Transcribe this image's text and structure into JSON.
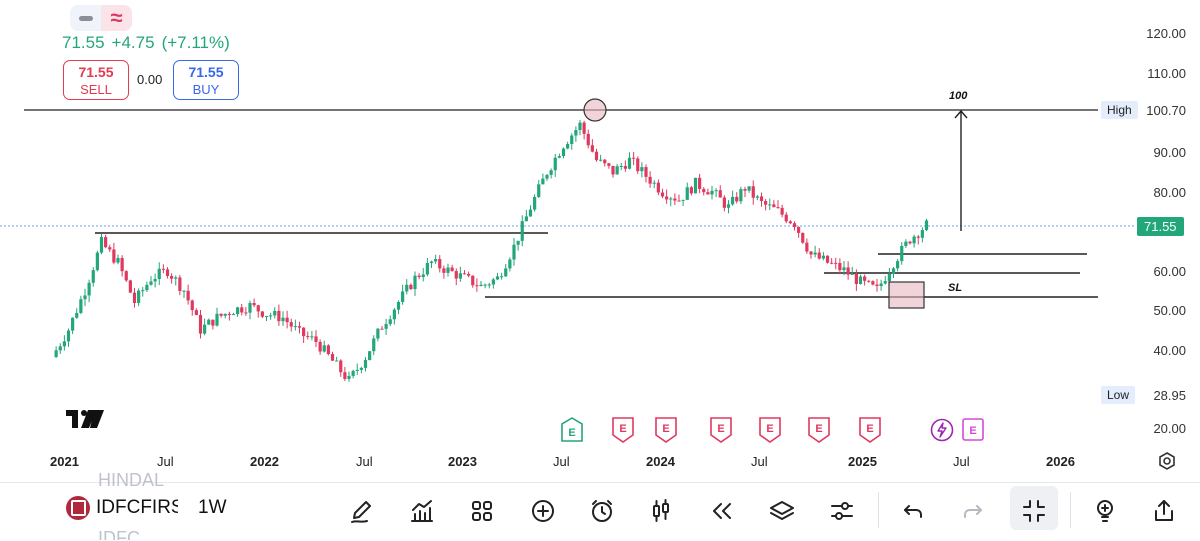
{
  "header": {
    "last": "71.55",
    "change": "+4.75",
    "change_pct": "(+7.11%)",
    "sell_price": "71.55",
    "sell_label": "SELL",
    "buy_price": "71.55",
    "buy_label": "BUY",
    "spread": "0.00"
  },
  "axis": {
    "y_ticks": [
      "120.00",
      "110.00",
      "90.00",
      "80.00",
      "60.00",
      "50.00",
      "40.00",
      "20.00"
    ],
    "high_label": "High",
    "high_value": "100.70",
    "low_label": "Low",
    "low_value": "28.95",
    "last_value": "71.55",
    "x_ticks": [
      {
        "label": "2021",
        "bold": true
      },
      {
        "label": "Jul",
        "bold": false
      },
      {
        "label": "2022",
        "bold": true
      },
      {
        "label": "Jul",
        "bold": false
      },
      {
        "label": "2023",
        "bold": true
      },
      {
        "label": "Jul",
        "bold": false
      },
      {
        "label": "2024",
        "bold": true
      },
      {
        "label": "Jul",
        "bold": false
      },
      {
        "label": "2025",
        "bold": true
      },
      {
        "label": "Jul",
        "bold": false
      },
      {
        "label": "2026",
        "bold": true
      }
    ]
  },
  "annotations": {
    "target": "100",
    "stop": "SL"
  },
  "events": [
    "E",
    "E",
    "E",
    "E",
    "E",
    "E",
    "E",
    "E"
  ],
  "watermark": "17",
  "toolbar": {
    "symbol": "IDFCFIRS",
    "ghost_above": "HINDAL",
    "ghost_below": "IDFC",
    "interval": "1W"
  },
  "chart_data": {
    "type": "candlestick",
    "interval": "1W",
    "y_range": [
      20,
      120
    ],
    "last": 71.55,
    "high": 100.7,
    "low": 28.95,
    "colors": {
      "up": "#22a67a",
      "down": "#e0395f"
    },
    "path": [
      [
        "2021-01",
        38
      ],
      [
        "2021-02",
        45
      ],
      [
        "2021-03",
        55
      ],
      [
        "2021-04",
        67
      ],
      [
        "2021-05",
        62
      ],
      [
        "2021-06",
        52
      ],
      [
        "2021-07",
        58
      ],
      [
        "2021-08",
        60
      ],
      [
        "2021-09",
        55
      ],
      [
        "2021-10",
        45
      ],
      [
        "2021-11",
        48
      ],
      [
        "2021-12",
        50
      ],
      [
        "2022-01",
        51
      ],
      [
        "2022-02",
        49
      ],
      [
        "2022-03",
        48
      ],
      [
        "2022-04",
        44
      ],
      [
        "2022-05",
        42
      ],
      [
        "2022-06",
        37
      ],
      [
        "2022-07",
        32
      ],
      [
        "2022-08",
        38
      ],
      [
        "2022-09",
        46
      ],
      [
        "2022-10",
        52
      ],
      [
        "2022-11",
        58
      ],
      [
        "2022-12",
        62
      ],
      [
        "2023-01",
        60
      ],
      [
        "2023-02",
        58
      ],
      [
        "2023-03",
        56
      ],
      [
        "2023-04",
        58
      ],
      [
        "2023-05",
        66
      ],
      [
        "2023-06",
        76
      ],
      [
        "2023-07",
        85
      ],
      [
        "2023-08",
        92
      ],
      [
        "2023-09",
        97
      ],
      [
        "2023-10",
        88
      ],
      [
        "2023-11",
        85
      ],
      [
        "2023-12",
        88
      ],
      [
        "2024-01",
        84
      ],
      [
        "2024-02",
        80
      ],
      [
        "2024-03",
        78
      ],
      [
        "2024-04",
        82
      ],
      [
        "2024-05",
        80
      ],
      [
        "2024-06",
        76
      ],
      [
        "2024-07",
        81
      ],
      [
        "2024-08",
        77
      ],
      [
        "2024-09",
        75
      ],
      [
        "2024-10",
        72
      ],
      [
        "2024-11",
        64
      ],
      [
        "2024-12",
        62
      ],
      [
        "2025-01",
        60
      ],
      [
        "2025-02",
        57
      ],
      [
        "2025-03",
        55
      ],
      [
        "2025-04",
        62
      ],
      [
        "2025-05",
        68
      ],
      [
        "2025-06",
        71.55
      ]
    ],
    "levels": [
      {
        "value": 100.7,
        "from": "2021-01",
        "to": "2026-04"
      },
      {
        "value": 70,
        "from": "2021-03",
        "to": "2023-06"
      },
      {
        "value": 64.5,
        "from": "2025-01",
        "to": "2026-04"
      },
      {
        "value": 59.5,
        "from": "2024-11",
        "to": "2026-04"
      },
      {
        "value": 53.5,
        "from": "2023-01",
        "to": "2026-04"
      }
    ]
  }
}
